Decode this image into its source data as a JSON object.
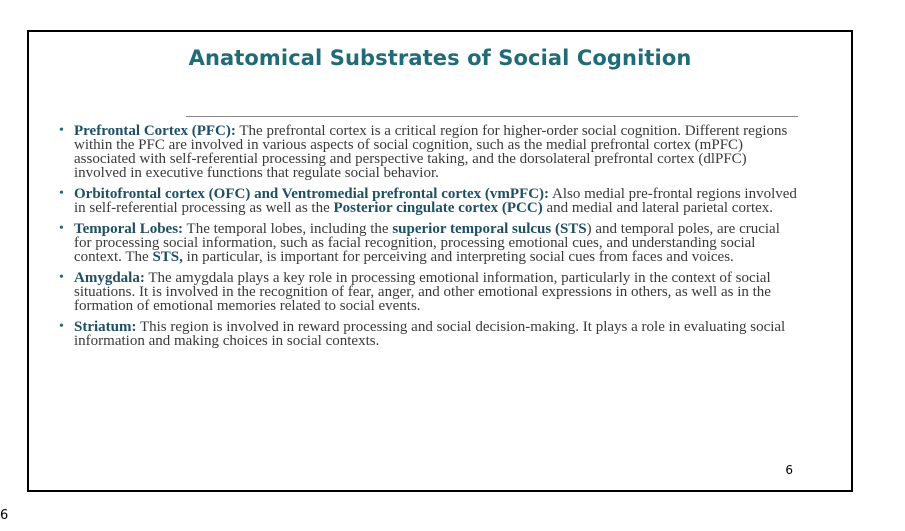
{
  "slide": {
    "title": "Anatomical Substrates of Social Cognition",
    "page_number": "6"
  },
  "bullets": [
    {
      "bold": "Prefrontal Cortex (PFC):",
      "text": " The prefrontal cortex is a critical region for higher-order social cognition. Different regions within the PFC are involved in various aspects of social cognition, such as the medial prefrontal cortex (mPFC) associated with self-referential processing and perspective taking, and the dorsolateral prefrontal cortex (dlPFC) involved in executive functions that regulate social behavior."
    },
    {
      "bold": "Orbitofrontal cortex (OFC) and Ventromedial prefrontal cortex (vmPFC):",
      "text": " Also medial pre-frontal regions involved in self-referential processing  as well as the ",
      "bold2": "Posterior cingulate cortex (PCC)",
      "text2": " and medial and lateral parietal cortex."
    },
    {
      "bold": "Temporal Lobes:",
      "text": " The temporal lobes, including the ",
      "bold2": "superior temporal sulcus (STS",
      "text2": ") and temporal poles, are crucial for processing social information, such as facial recognition, processing emotional cues, and understanding social context. The ",
      "bold3": "STS,",
      "text3": " in particular, is important for perceiving and interpreting social cues from faces and voices."
    },
    {
      "bold": "Amygdala:",
      "text": " The amygdala plays a key role in processing emotional information, particularly in the context of social situations. It is involved in the recognition of fear, anger, and other emotional expressions in others, as well as in the formation of emotional memories related to social events."
    },
    {
      "bold": "Striatum:",
      "text": " This region is involved in reward processing and social decision-making. It plays a role in evaluating social information and making choices in social contexts."
    }
  ],
  "footer": {
    "page_label": "6"
  },
  "colors": {
    "title": "#1f6b78",
    "bold_text": "#1f4f63",
    "body_text": "#3a3a3a"
  }
}
